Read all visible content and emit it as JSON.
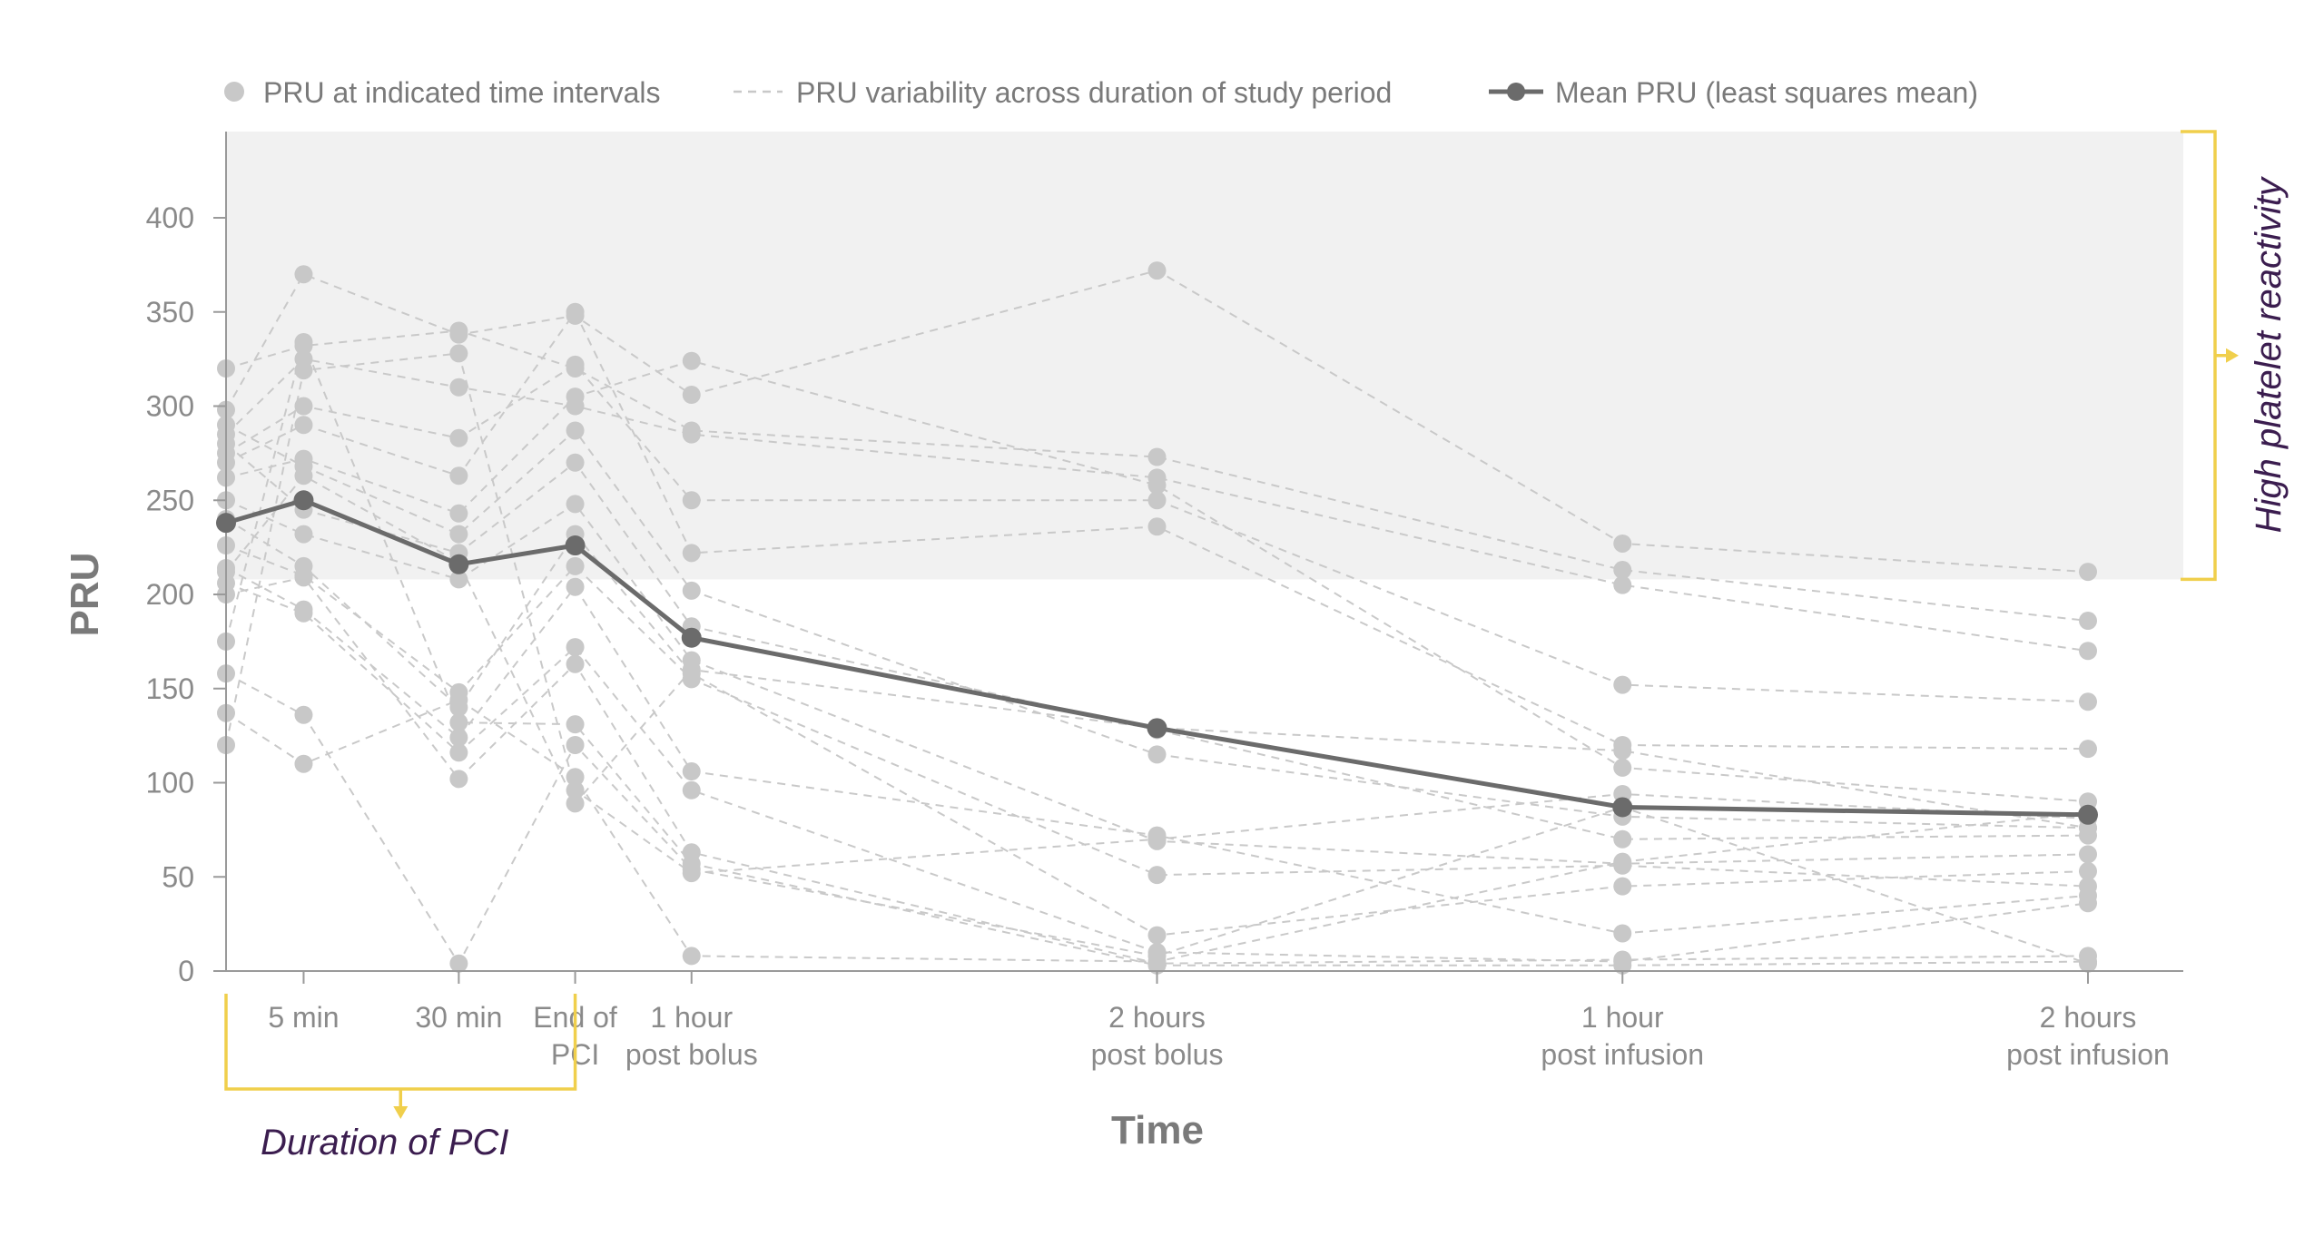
{
  "chart_data": {
    "type": "scatter",
    "title": "",
    "xlabel": "Time",
    "ylabel": "PRU",
    "ylim": [
      0,
      440
    ],
    "yticks": [
      0,
      50,
      100,
      150,
      200,
      250,
      300,
      350,
      400
    ],
    "grid": false,
    "legend_position": "top",
    "legend": [
      {
        "key": "points",
        "label": "PRU at indicated time intervals"
      },
      {
        "key": "variability",
        "label": "PRU variability across duration of study period"
      },
      {
        "key": "mean",
        "label": "Mean PRU (least squares mean)"
      }
    ],
    "x_positions": [
      0,
      10,
      30,
      45,
      60,
      120,
      180,
      240
    ],
    "x_tick_labels": [
      {
        "pos": 10,
        "lines": [
          "5 min"
        ]
      },
      {
        "pos": 30,
        "lines": [
          "30 min"
        ]
      },
      {
        "pos": 45,
        "lines": [
          "End of",
          "PCI"
        ]
      },
      {
        "pos": 60,
        "lines": [
          "1 hour",
          "post bolus"
        ]
      },
      {
        "pos": 120,
        "lines": [
          "2 hours",
          "post bolus"
        ]
      },
      {
        "pos": 180,
        "lines": [
          "1 hour",
          "post infusion"
        ]
      },
      {
        "pos": 240,
        "lines": [
          "2 hours",
          "post infusion"
        ]
      }
    ],
    "high_reactivity_threshold": 208,
    "annotations": {
      "high_reactivity": "High platelet reactivity",
      "pci_duration": "Duration of PCI",
      "pci_range": [
        0,
        45
      ]
    },
    "mean_series": {
      "name": "Mean PRU (least squares mean)",
      "values": [
        238,
        250,
        216,
        226,
        177,
        129,
        87,
        83
      ]
    },
    "patients": [
      [
        298,
        370,
        338,
        348,
        306,
        372,
        227,
        212
      ],
      [
        320,
        332,
        340,
        320,
        287,
        273,
        213,
        186
      ],
      [
        285,
        325,
        310,
        300,
        285,
        262,
        205,
        170
      ],
      [
        275,
        300,
        283,
        322,
        250,
        250,
        152,
        143
      ],
      [
        270,
        290,
        263,
        350,
        222,
        236,
        120,
        118
      ],
      [
        262,
        272,
        243,
        305,
        324,
        258,
        108,
        90
      ],
      [
        290,
        268,
        232,
        287,
        202,
        115,
        82,
        76
      ],
      [
        280,
        245,
        222,
        270,
        183,
        128,
        70,
        72
      ],
      [
        250,
        232,
        208,
        248,
        165,
        69,
        57,
        62
      ],
      [
        240,
        215,
        140,
        232,
        158,
        19,
        45,
        53
      ],
      [
        226,
        210,
        148,
        215,
        155,
        51,
        56,
        45
      ],
      [
        214,
        192,
        124,
        204,
        106,
        72,
        20,
        40
      ],
      [
        206,
        190,
        116,
        172,
        96,
        10,
        5,
        36
      ],
      [
        200,
        209,
        102,
        163,
        63,
        4,
        6,
        8
      ],
      [
        175,
        334,
        132,
        131,
        57,
        3,
        3,
        5
      ],
      [
        158,
        136,
        4,
        120,
        54,
        8,
        87,
        4
      ],
      [
        137,
        110,
        144,
        103,
        8,
        5,
        58,
        84
      ],
      [
        120,
        319,
        328,
        96,
        52,
        70,
        94,
        81
      ],
      [
        212,
        263,
        217,
        89,
        160,
        129,
        117,
        76
      ]
    ]
  }
}
